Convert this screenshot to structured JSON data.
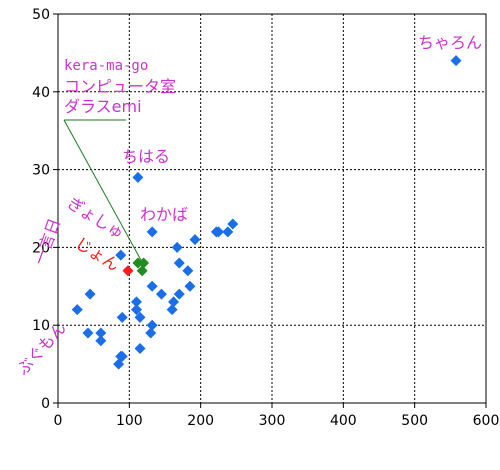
{
  "chart_data": {
    "type": "scatter",
    "title": "",
    "xlabel": "",
    "ylabel": "",
    "xlim": [
      0,
      600
    ],
    "ylim": [
      0,
      50
    ],
    "x_ticks": [
      "0",
      "100",
      "200",
      "300",
      "400",
      "500",
      "600"
    ],
    "y_ticks": [
      "0",
      "10",
      "20",
      "30",
      "40",
      "50"
    ],
    "grid": true,
    "series": [
      {
        "color": "#1a6fe8",
        "points": [
          [
            27,
            12
          ],
          [
            42,
            9
          ],
          [
            45,
            14
          ],
          [
            60,
            9
          ],
          [
            60,
            8
          ],
          [
            85,
            5
          ],
          [
            88,
            6
          ],
          [
            90,
            6
          ],
          [
            88,
            19
          ],
          [
            90,
            11
          ],
          [
            110,
            13
          ],
          [
            110,
            12
          ],
          [
            112,
            29
          ],
          [
            115,
            7
          ],
          [
            115,
            11
          ],
          [
            130,
            9
          ],
          [
            132,
            10
          ],
          [
            132,
            22
          ],
          [
            132,
            15
          ],
          [
            145,
            14
          ],
          [
            160,
            12
          ],
          [
            162,
            13
          ],
          [
            167,
            20
          ],
          [
            170,
            14
          ],
          [
            170,
            18
          ],
          [
            182,
            17
          ],
          [
            185,
            15
          ],
          [
            192,
            21
          ],
          [
            222,
            22
          ],
          [
            225,
            22
          ],
          [
            238,
            22
          ],
          [
            245,
            23
          ],
          [
            558,
            44
          ]
        ]
      },
      {
        "color": "#228b22",
        "points": [
          [
            112,
            18
          ],
          [
            118,
            17
          ],
          [
            120,
            18
          ]
        ]
      },
      {
        "color": "#ff1a1a",
        "points": [
          [
            98,
            17
          ]
        ]
      }
    ],
    "annotations": [
      {
        "text": "ちゃろん",
        "color": "#cc33cc"
      },
      {
        "text": "kera-ma-go",
        "color": "#cc33cc"
      },
      {
        "text": "コンピュータ室",
        "color": "#cc33cc"
      },
      {
        "text": "ダラスemi",
        "color": "#cc33cc"
      },
      {
        "text": "ちはる",
        "color": "#cc33cc"
      },
      {
        "text": "わかば",
        "color": "#cc33cc"
      },
      {
        "text": "ぎょしゅ",
        "color": "#cc33cc"
      },
      {
        "text": "じょん",
        "color": "#ff1a1a"
      },
      {
        "text": "一言日",
        "color": "#cc33cc"
      },
      {
        "text": "ぶぐもん",
        "color": "#cc33cc"
      }
    ]
  }
}
